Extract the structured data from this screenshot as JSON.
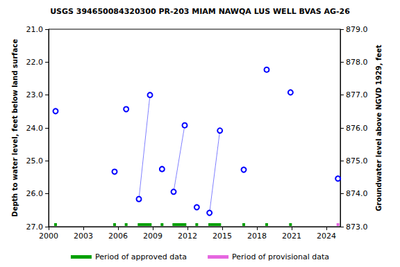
{
  "chart_data": {
    "type": "line",
    "title": "USGS 394650084320300 PR-203 MIAM NAWQA LUS WELL BVAS AG-26",
    "y_label": "Depth to water level, feet below land surface",
    "y2_label": "Groundwater level above NGVD 1929, feet",
    "marker": "circle",
    "line_style": "dotted",
    "color": "#0000ff",
    "grid": false,
    "x": [
      2000.6,
      null,
      2005.7,
      null,
      2006.7,
      null,
      2007.8,
      2008.76,
      null,
      2009.8,
      null,
      2010.8,
      2011.76,
      null,
      2012.8,
      null,
      2013.9,
      2014.8,
      null,
      2016.86,
      null,
      2018.84,
      null,
      2020.9,
      null,
      2025.0
    ],
    "values": [
      23.49,
      null,
      25.33,
      null,
      23.43,
      null,
      26.16,
      23.0,
      null,
      25.25,
      null,
      25.94,
      23.92,
      null,
      26.41,
      null,
      26.58,
      24.08,
      null,
      25.27,
      null,
      22.23,
      null,
      22.92,
      null,
      25.54
    ],
    "xlim": [
      2000,
      2025.2
    ],
    "xticks": [
      2000,
      2003,
      2006,
      2009,
      2012,
      2015,
      2018,
      2021,
      2024
    ],
    "ylim": [
      27,
      21
    ],
    "yticks": [
      {
        "value": 21,
        "label": "21.0"
      },
      {
        "value": 22,
        "label": "22.0"
      },
      {
        "value": 23,
        "label": "23.0"
      },
      {
        "value": 24,
        "label": "24.0"
      },
      {
        "value": 25,
        "label": "25.0"
      },
      {
        "value": 26,
        "label": "26.0"
      },
      {
        "value": 27,
        "label": "27.0"
      }
    ],
    "y2lim": [
      873,
      879
    ],
    "y2ticks": [
      {
        "value": 873,
        "label": "873.0"
      },
      {
        "value": 874,
        "label": "874.0"
      },
      {
        "value": 875,
        "label": "875.0"
      },
      {
        "value": 876,
        "label": "876.0"
      },
      {
        "value": 877,
        "label": "877.0"
      },
      {
        "value": 878,
        "label": "878.0"
      },
      {
        "value": 879,
        "label": "879.0"
      }
    ],
    "legend": "bottom",
    "periods": [
      {
        "name": "Period of approved data",
        "color": "#00a000",
        "ranges": [
          [
            2000.6,
            2000.6
          ],
          [
            2005.7,
            2005.7
          ],
          [
            2006.7,
            2006.7
          ],
          [
            2007.7,
            2008.9
          ],
          [
            2009.8,
            2009.8
          ],
          [
            2010.7,
            2011.9
          ],
          [
            2012.8,
            2012.8
          ],
          [
            2013.8,
            2014.9
          ],
          [
            2016.86,
            2016.86
          ],
          [
            2018.84,
            2018.84
          ],
          [
            2020.9,
            2020.9
          ]
        ]
      },
      {
        "name": "Period of provisional data",
        "color": "#e666e0",
        "ranges": [
          [
            2025.0,
            2025.0
          ]
        ]
      }
    ]
  }
}
